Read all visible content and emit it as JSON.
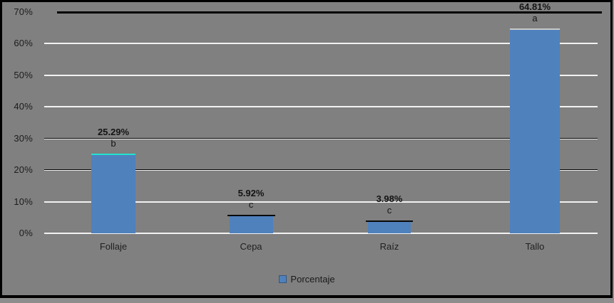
{
  "chart_data": {
    "type": "bar",
    "title": "",
    "categories": [
      "Follaje",
      "Cepa",
      "Raíz",
      "Tallo"
    ],
    "series": [
      {
        "name": "Porcentaje",
        "values": [
          25.29,
          5.92,
          3.98,
          64.81
        ]
      }
    ],
    "data_labels": [
      "25.29%",
      "5.92%",
      "3.98%",
      "64.81%"
    ],
    "group_letters": [
      "b",
      "c",
      "c",
      "a"
    ],
    "legend": {
      "label": "Porcentaje",
      "position": "bottom"
    },
    "y_axis": {
      "tick_labels": [
        "0%",
        "10%",
        "20%",
        "30%",
        "40%",
        "50%",
        "60%",
        "70%"
      ],
      "tick_values": [
        0,
        10,
        20,
        30,
        40,
        50,
        60,
        70
      ],
      "min": 0,
      "max": 70,
      "grid": true
    },
    "x_axis": {
      "label": "",
      "grid": false
    },
    "ylabel": "",
    "xlabel": "",
    "layout_hints": {
      "gridline_dark_at": [
        30,
        20
      ],
      "gridline_thick_black_at": [
        70
      ],
      "legend_position": "bottom-center"
    },
    "colors": {
      "bar": "#4f81bd",
      "background": "#808080",
      "gridline_white": "#f2f2f2",
      "gridline_dark": "#000000",
      "text": "#1c1c1c",
      "bar_top_caps": [
        "#1fe3cf",
        "#0a0a0a",
        "#0a0a0a",
        "#c9c9c9"
      ]
    }
  }
}
